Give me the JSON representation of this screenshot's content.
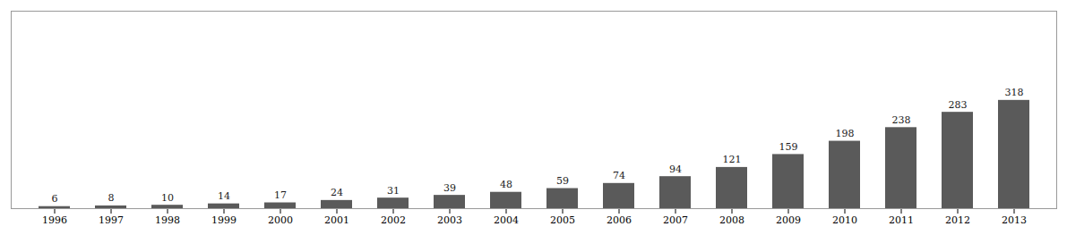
{
  "chart_data": {
    "type": "bar",
    "categories": [
      "1996",
      "1997",
      "1998",
      "1999",
      "2000",
      "2001",
      "2002",
      "2003",
      "2004",
      "2005",
      "2006",
      "2007",
      "2008",
      "2009",
      "2010",
      "2011",
      "2012",
      "2013"
    ],
    "values": [
      6,
      8,
      10,
      14,
      17,
      24,
      31,
      39,
      48,
      59,
      74,
      94,
      121,
      159,
      198,
      238,
      283,
      318
    ],
    "color": "#5a5a5a",
    "ylim": [
      0,
      580
    ],
    "data_labels": true,
    "tick_labels": "x",
    "grid": false
  }
}
